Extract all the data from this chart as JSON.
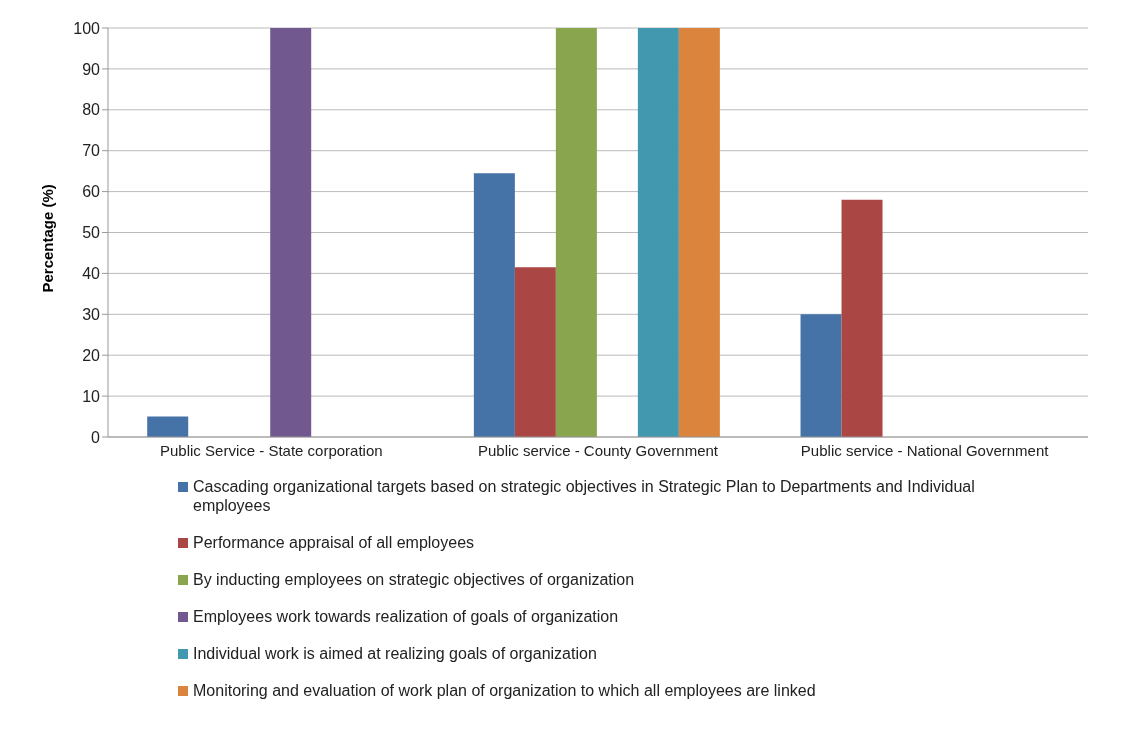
{
  "chart_data": {
    "type": "bar",
    "ylabel": "Percentage (%)",
    "categories": [
      "Public Service - State corporation",
      "Public service - County Government",
      "Public service - National Government"
    ],
    "series": [
      {
        "name": "Cascading organizational targets based on strategic objectives in Strategic Plan to Departments and Individual employees",
        "color": "#4572a7",
        "values": [
          5,
          64.5,
          30
        ]
      },
      {
        "name": "Performance appraisal of all employees",
        "color": "#aa4643",
        "values": [
          0,
          41.5,
          58
        ]
      },
      {
        "name": "By inducting employees on strategic objectives of organization",
        "color": "#89a54e",
        "values": [
          0,
          100,
          0
        ]
      },
      {
        "name": "Employees work towards realization of goals of organization",
        "color": "#71588f",
        "values": [
          100,
          0,
          0
        ]
      },
      {
        "name": "Individual work is aimed at realizing goals of organization",
        "color": "#4198af",
        "values": [
          0,
          100,
          0
        ]
      },
      {
        "name": "Monitoring and evaluation of work plan of organization to which all employees are linked",
        "color": "#db843d",
        "values": [
          0,
          100,
          0
        ]
      }
    ],
    "ylim": [
      0,
      100
    ],
    "yticks": [
      0,
      10,
      20,
      30,
      40,
      50,
      60,
      70,
      80,
      90,
      100
    ],
    "grid": "y",
    "legend": "bottom"
  }
}
